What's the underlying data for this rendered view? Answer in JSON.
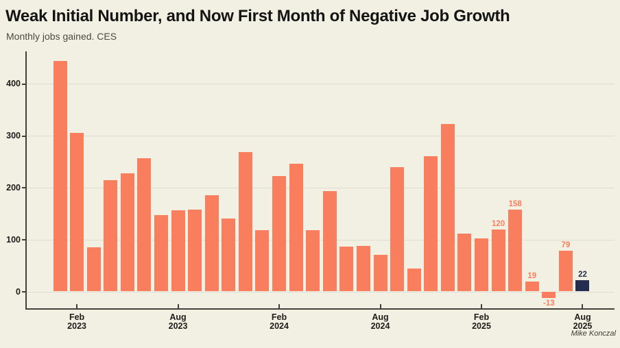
{
  "header": {
    "title": "Weak Initial Number, and Now First Month of Negative Job Growth",
    "subtitle": "Monthly jobs gained. CES"
  },
  "credit": "Mike Konczal",
  "colors": {
    "background": "#F2F0E3",
    "bar": "#F97E5D",
    "highlight_bar": "#252E4E",
    "gridline": "#DCDED4",
    "axis": "#42403A",
    "label_orange": "#F97E5D",
    "label_navy": "#252E4E"
  },
  "chart_data": {
    "type": "bar",
    "title": "Weak Initial Number, and Now First Month of Negative Job Growth",
    "subtitle": "Monthly jobs gained. CES",
    "xlabel": "",
    "ylabel": "",
    "grid": "horizontal",
    "legend": "none",
    "ylim": [
      -40,
      460
    ],
    "yticks": [
      0,
      100,
      200,
      300,
      400
    ],
    "categories": [
      "Jan 2023",
      "Feb 2023",
      "Mar 2023",
      "Apr 2023",
      "May 2023",
      "Jun 2023",
      "Jul 2023",
      "Aug 2023",
      "Sep 2023",
      "Oct 2023",
      "Nov 2023",
      "Dec 2023",
      "Jan 2024",
      "Feb 2024",
      "Mar 2024",
      "Apr 2024",
      "May 2024",
      "Jun 2024",
      "Jul 2024",
      "Aug 2024",
      "Sep 2024",
      "Oct 2024",
      "Nov 2024",
      "Dec 2024",
      "Jan 2025",
      "Feb 2025",
      "Mar 2025",
      "Apr 2025",
      "May 2025",
      "Jun 2025",
      "Jul 2025",
      "Aug 2025"
    ],
    "values": [
      444,
      306,
      85,
      215,
      227,
      257,
      147,
      156,
      157,
      185,
      141,
      269,
      118,
      222,
      246,
      118,
      193,
      87,
      88,
      71,
      240,
      44,
      261,
      323,
      111,
      102,
      120,
      158,
      19,
      -13,
      79,
      22
    ],
    "bar_labels": [
      null,
      null,
      null,
      null,
      null,
      null,
      null,
      null,
      null,
      null,
      null,
      null,
      null,
      null,
      null,
      null,
      null,
      null,
      null,
      null,
      null,
      null,
      null,
      null,
      null,
      null,
      "120",
      "158",
      "19",
      "-13",
      "79",
      "22"
    ],
    "highlight_index": 31,
    "xticks": [
      {
        "index": 1,
        "line1": "Feb",
        "line2": "2023"
      },
      {
        "index": 7,
        "line1": "Aug",
        "line2": "2023"
      },
      {
        "index": 13,
        "line1": "Feb",
        "line2": "2024"
      },
      {
        "index": 19,
        "line1": "Aug",
        "line2": "2024"
      },
      {
        "index": 25,
        "line1": "Feb",
        "line2": "2025"
      },
      {
        "index": 31,
        "line1": "Aug",
        "line2": "2025"
      }
    ]
  }
}
